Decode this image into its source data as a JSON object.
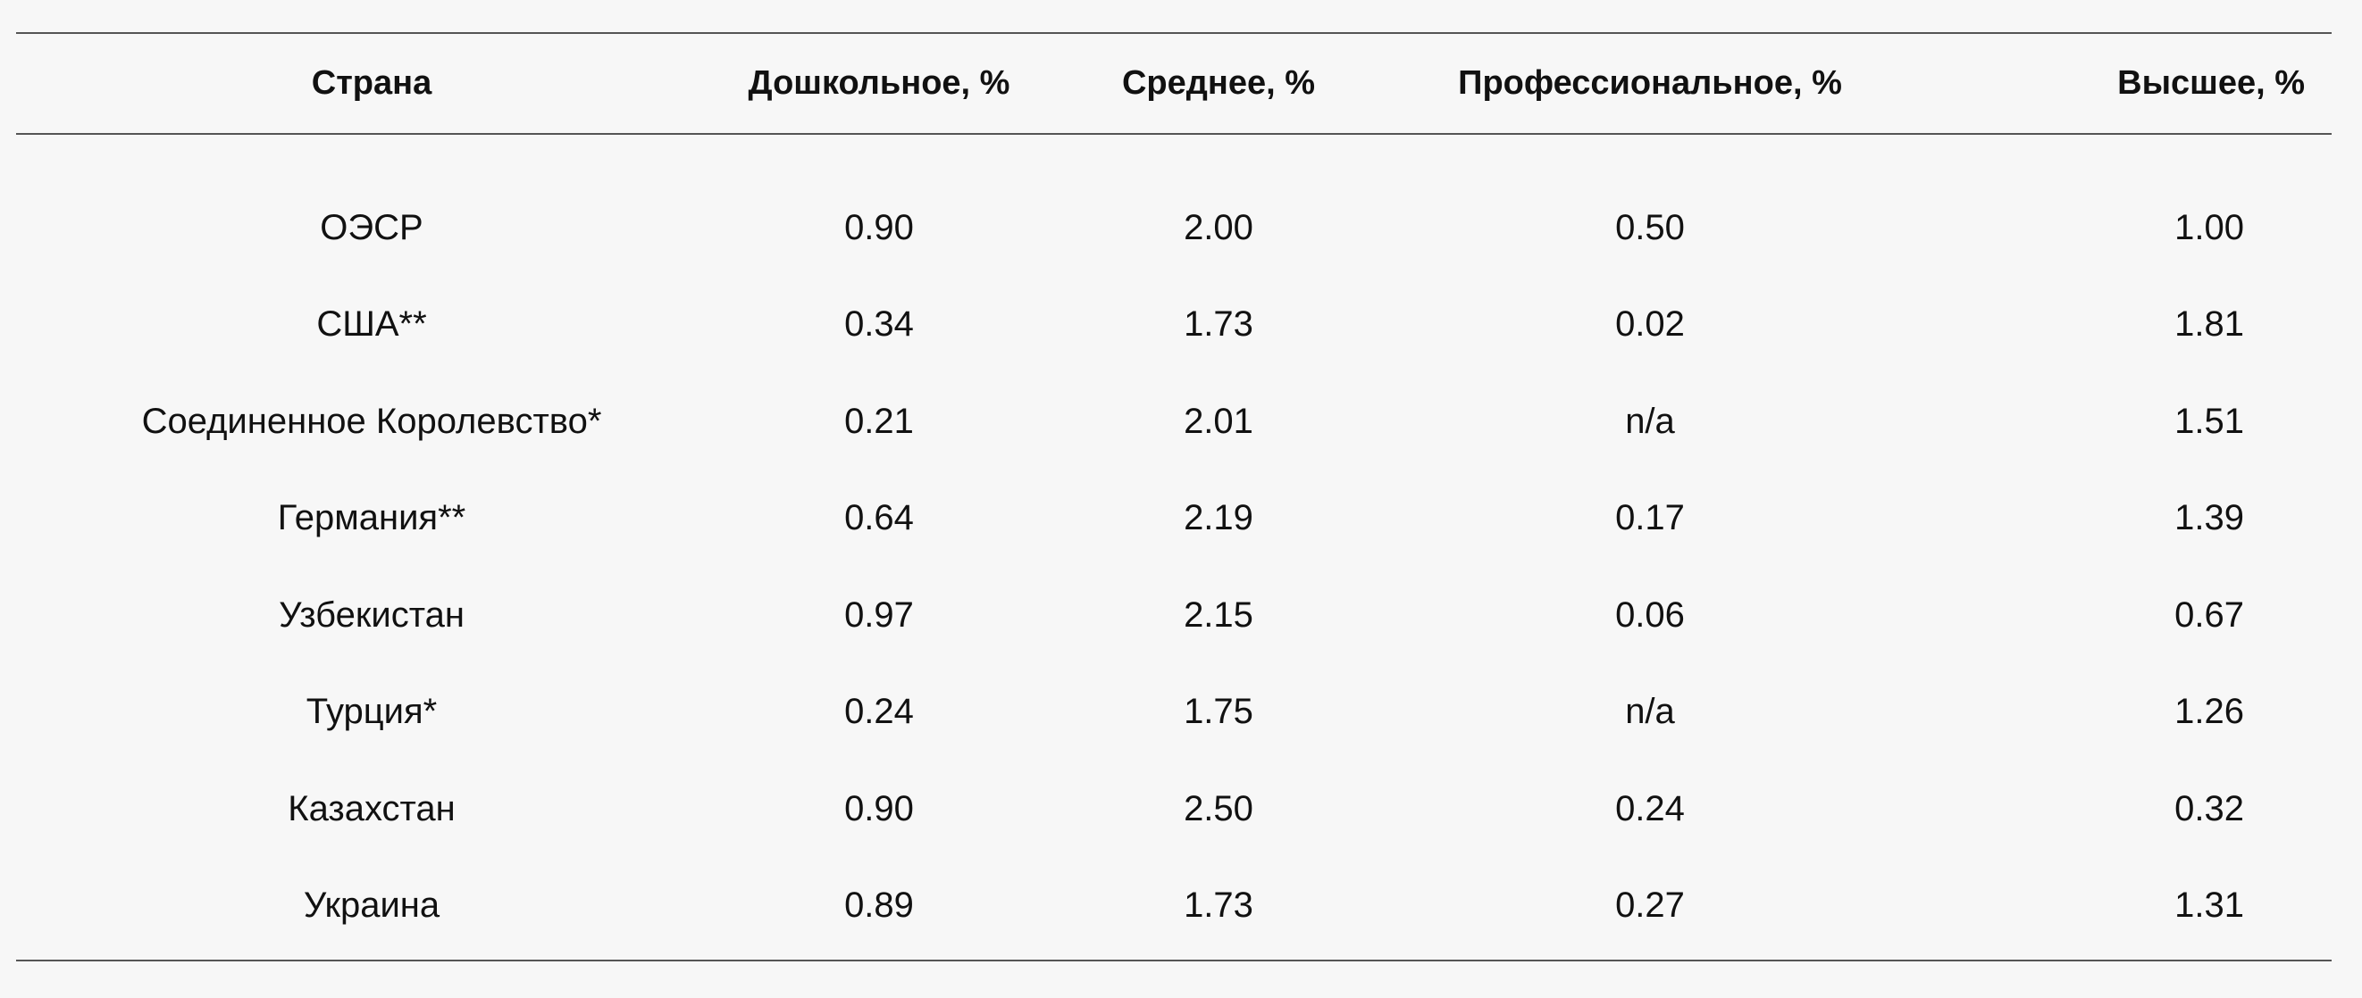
{
  "table": {
    "headers": [
      "Страна",
      "Дошкольное, %",
      "Среднее, %",
      "Профессиональное, %",
      "Высшее, %"
    ],
    "rows": [
      [
        "ОЭСР",
        "0.90",
        "2.00",
        "0.50",
        "1.00"
      ],
      [
        "США**",
        "0.34",
        "1.73",
        "0.02",
        "1.81"
      ],
      [
        "Соединенное Королевство*",
        "0.21",
        "2.01",
        "n/a",
        "1.51"
      ],
      [
        "Германия**",
        "0.64",
        "2.19",
        "0.17",
        "1.39"
      ],
      [
        "Узбекистан",
        "0.97",
        "2.15",
        "0.06",
        "0.67"
      ],
      [
        "Турция*",
        "0.24",
        "1.75",
        "n/a",
        "1.26"
      ],
      [
        "Казахстан",
        "0.90",
        "2.50",
        "0.24",
        "0.32"
      ],
      [
        "Украина",
        "0.89",
        "1.73",
        "0.27",
        "1.31"
      ]
    ]
  }
}
